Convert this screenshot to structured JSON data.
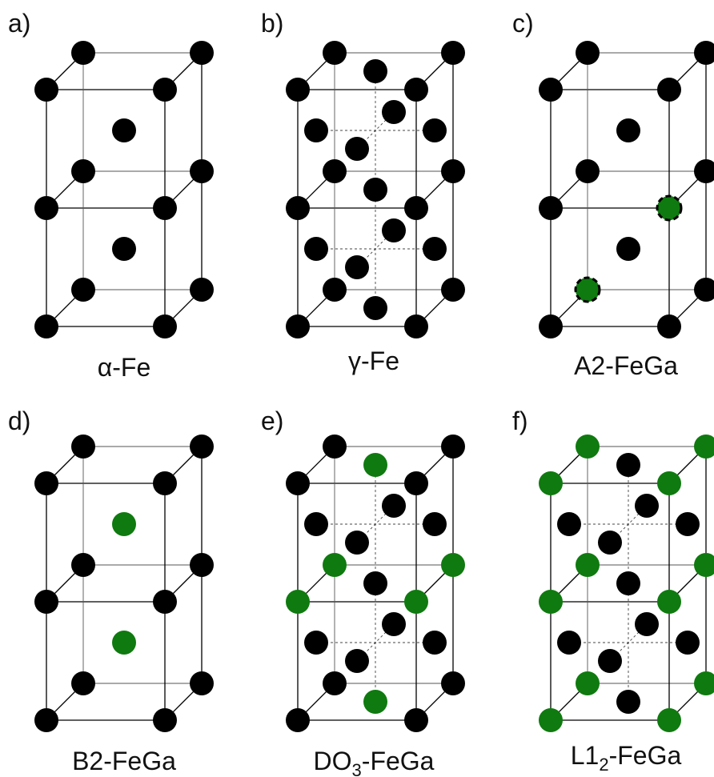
{
  "colors": {
    "fe_atom": "#000000",
    "ga_atom": "#0f7a0f",
    "edge": "#000000"
  },
  "panels": [
    {
      "letter": "a)",
      "caption": "α-Fe",
      "caption_sub": "",
      "caption_tail": "",
      "lattice": "bcc",
      "atoms": {
        "corners": "fe",
        "body": "fe"
      }
    },
    {
      "letter": "b)",
      "caption": "γ-Fe",
      "caption_sub": "",
      "caption_tail": "",
      "lattice": "fcc",
      "atoms": {
        "corners": "fe",
        "mid_layer": "fe",
        "faces": "fe"
      }
    },
    {
      "letter": "c)",
      "caption": "A2-FeGa",
      "caption_sub": "",
      "caption_tail": "",
      "lattice": "bcc",
      "atoms": {
        "corners": "fe",
        "body": "fe",
        "mixed_sites": "fe-ga"
      }
    },
    {
      "letter": "d)",
      "caption": "B2-FeGa",
      "caption_sub": "",
      "caption_tail": "",
      "lattice": "bcc",
      "atoms": {
        "corners": "fe",
        "body": "ga"
      }
    },
    {
      "letter": "e)",
      "caption": "DO",
      "caption_sub": "3",
      "caption_tail": "-FeGa",
      "lattice": "fcc",
      "atoms": {
        "corners": "fe",
        "mid_layer": "ga",
        "faces": "fe",
        "top_bottom_faces": "ga"
      }
    },
    {
      "letter": "f)",
      "caption": "L1",
      "caption_sub": "2",
      "caption_tail": "-FeGa",
      "lattice": "fcc",
      "atoms": {
        "corners": "ga",
        "mid_layer": "ga",
        "faces": "fe"
      }
    }
  ]
}
